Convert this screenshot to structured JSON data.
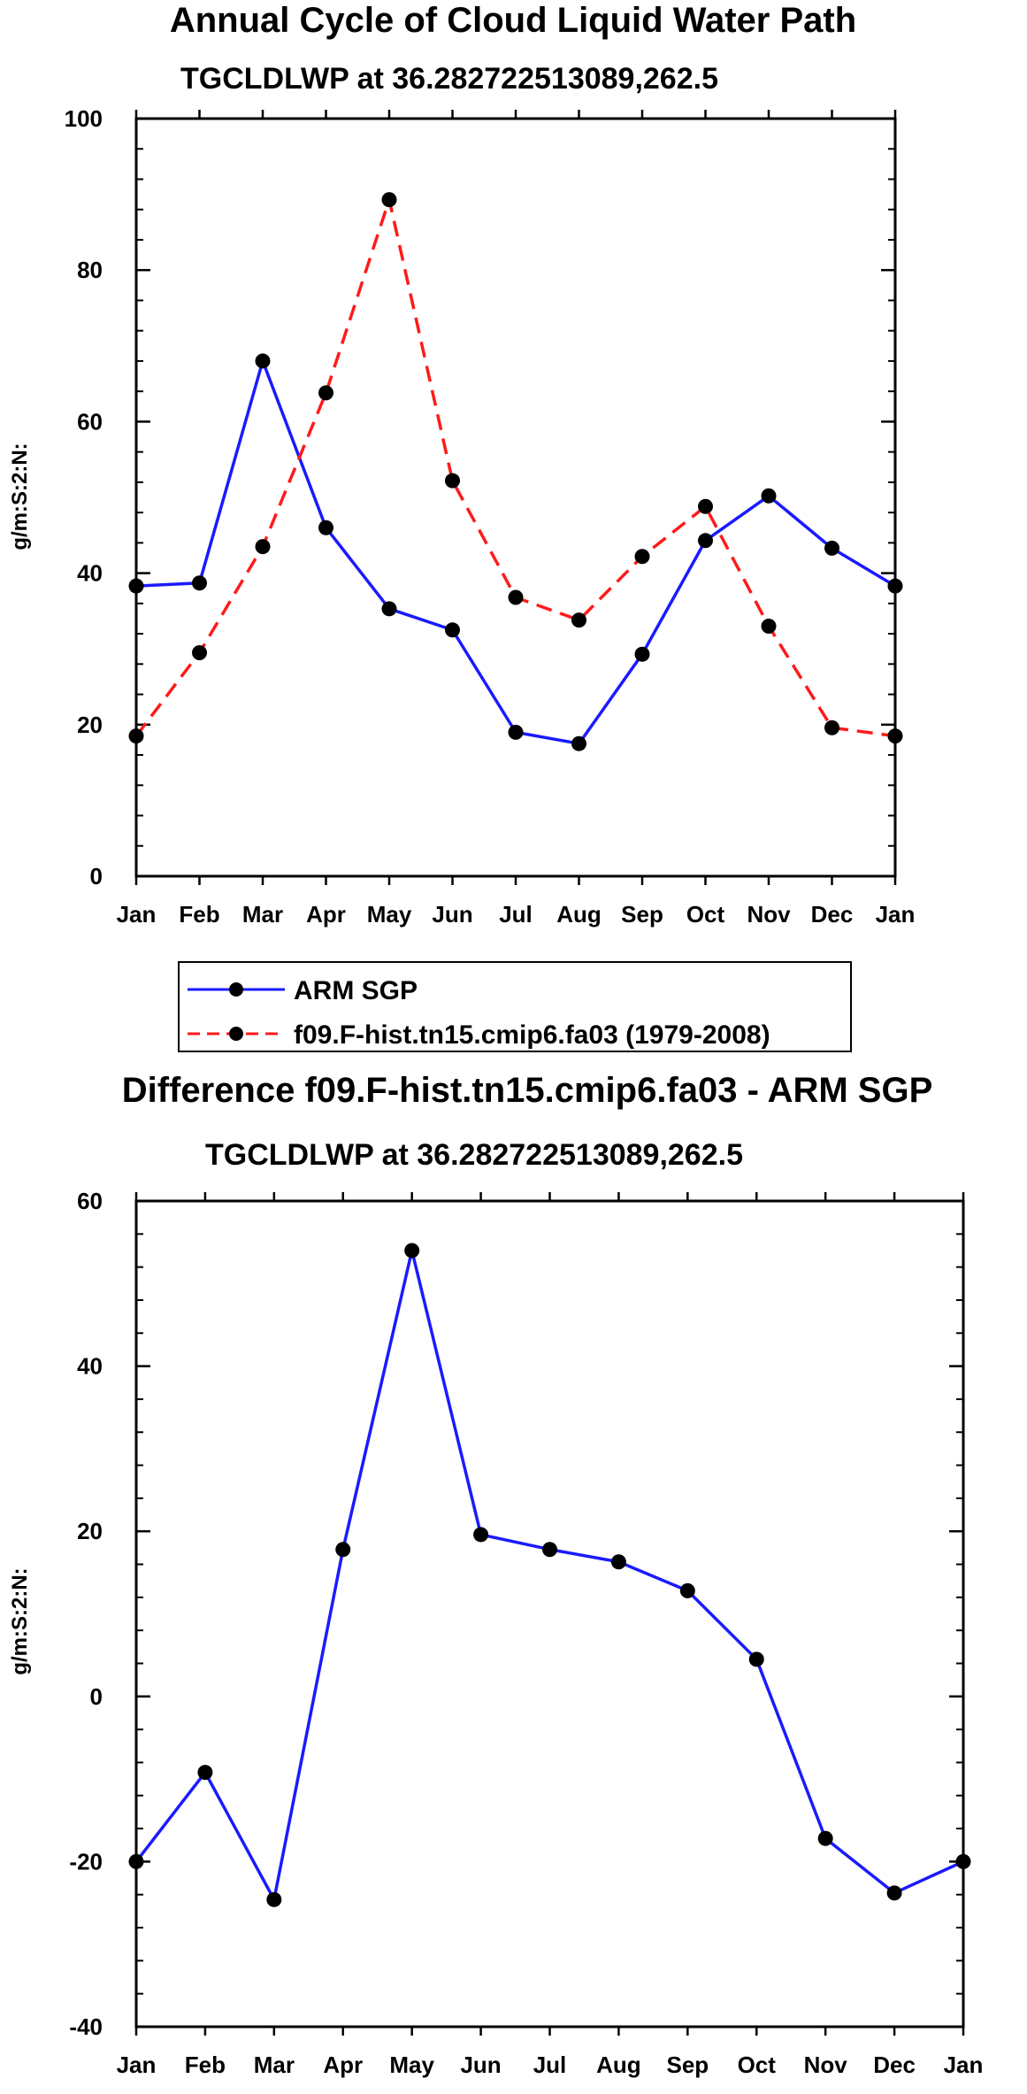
{
  "chart_data": [
    {
      "type": "line",
      "title": "Annual Cycle of Cloud Liquid Water Path",
      "subtitle": "TGCLDLWP at 36.282722513089,262.5",
      "xlabel": "",
      "ylabel": "g/m:S:2:N:",
      "categories": [
        "Jan",
        "Feb",
        "Mar",
        "Apr",
        "May",
        "Jun",
        "Jul",
        "Aug",
        "Sep",
        "Oct",
        "Nov",
        "Dec",
        "Jan"
      ],
      "ylim": [
        0,
        100
      ],
      "yticks": [
        0,
        20,
        40,
        60,
        80,
        100
      ],
      "grid": false,
      "series": [
        {
          "name": "ARM SGP",
          "color": "#1a1aff",
          "dash": "solid",
          "values": [
            38.3,
            38.7,
            68.0,
            46.0,
            35.3,
            32.5,
            19.0,
            17.5,
            29.3,
            44.3,
            50.2,
            43.3,
            38.3
          ]
        },
        {
          "name": "f09.F-hist.tn15.cmip6.fa03 (1979-2008)",
          "color": "#ff1a1a",
          "dash": "dashed",
          "values": [
            18.5,
            29.5,
            43.5,
            63.8,
            89.3,
            52.2,
            36.8,
            33.8,
            42.2,
            48.8,
            33.0,
            19.6,
            18.5
          ]
        }
      ],
      "legend": {
        "position": "bottom",
        "entries": [
          "ARM SGP",
          "f09.F-hist.tn15.cmip6.fa03 (1979-2008)"
        ]
      }
    },
    {
      "type": "line",
      "title": "Difference f09.F-hist.tn15.cmip6.fa03 - ARM SGP",
      "subtitle": "TGCLDLWP at 36.282722513089,262.5",
      "xlabel": "",
      "ylabel": "g/m:S:2:N:",
      "categories": [
        "Jan",
        "Feb",
        "Mar",
        "Apr",
        "May",
        "Jun",
        "Jul",
        "Aug",
        "Sep",
        "Oct",
        "Nov",
        "Dec",
        "Jan"
      ],
      "ylim": [
        -40,
        60
      ],
      "yticks": [
        -40,
        -20,
        0,
        20,
        40,
        60
      ],
      "grid": false,
      "series": [
        {
          "name": "Difference",
          "color": "#1a1aff",
          "dash": "solid",
          "values": [
            -20.0,
            -9.2,
            -24.6,
            17.8,
            54.0,
            19.6,
            17.8,
            16.3,
            12.8,
            4.5,
            -17.2,
            -23.8,
            -20.0
          ]
        }
      ]
    }
  ]
}
